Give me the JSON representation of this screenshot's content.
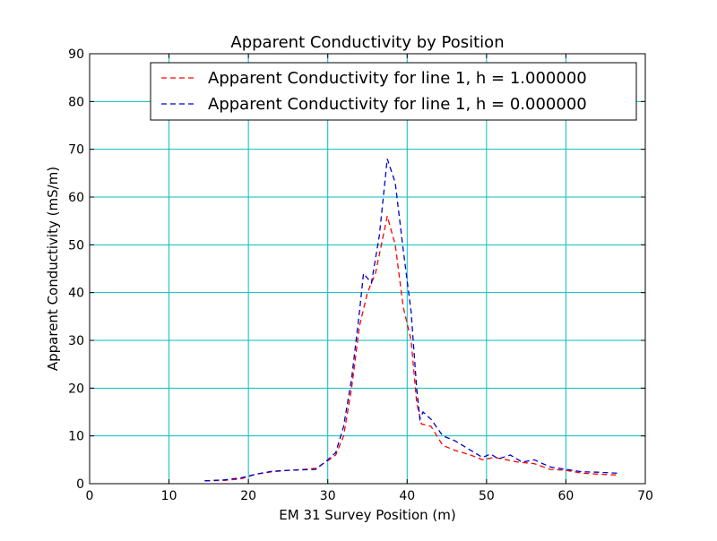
{
  "chart_data": {
    "type": "line",
    "title": "Apparent Conductivity by Position",
    "xlabel": "EM 31 Survey Position (m)",
    "ylabel": "Apparent Conductivity (mS/m)",
    "xlim": [
      0,
      70
    ],
    "ylim": [
      0,
      90
    ],
    "xticks": [
      0,
      10,
      20,
      30,
      40,
      50,
      60,
      70
    ],
    "yticks": [
      0,
      10,
      20,
      30,
      40,
      50,
      60,
      70,
      80,
      90
    ],
    "grid": true,
    "grid_color": "#00bfbf",
    "legend_position": "upper-right",
    "series": [
      {
        "name": "Apparent Conductivity for line 1, h = 1.000000",
        "color": "#ff0000",
        "style": "dashed",
        "points": [
          [
            14.5,
            0.6
          ],
          [
            17,
            0.7
          ],
          [
            19,
            1.0
          ],
          [
            21,
            2.0
          ],
          [
            23,
            2.5
          ],
          [
            25,
            2.8
          ],
          [
            27,
            3.0
          ],
          [
            28.5,
            3.2
          ],
          [
            30,
            4.8
          ],
          [
            31,
            6.0
          ],
          [
            32,
            10.0
          ],
          [
            33,
            20.0
          ],
          [
            34,
            33.0
          ],
          [
            35,
            40.0
          ],
          [
            36,
            44.0
          ],
          [
            37.5,
            56.0
          ],
          [
            38.5,
            50.0
          ],
          [
            39.5,
            37.0
          ],
          [
            40.5,
            30.0
          ],
          [
            41.2,
            17.0
          ],
          [
            41.8,
            12.5
          ],
          [
            43,
            12.0
          ],
          [
            44.5,
            8.0
          ],
          [
            46,
            7.0
          ],
          [
            48,
            6.0
          ],
          [
            49.5,
            5.0
          ],
          [
            51,
            5.5
          ],
          [
            52.5,
            5.0
          ],
          [
            54,
            4.5
          ],
          [
            56,
            4.2
          ],
          [
            58,
            3.0
          ],
          [
            60,
            2.8
          ],
          [
            62,
            2.2
          ],
          [
            64,
            2.0
          ],
          [
            66.5,
            1.8
          ]
        ]
      },
      {
        "name": "Apparent Conductivity for line 1, h = 0.000000",
        "color": "#0000cc",
        "style": "dashed",
        "points": [
          [
            14.5,
            0.6
          ],
          [
            17,
            0.8
          ],
          [
            19,
            1.2
          ],
          [
            21,
            2.0
          ],
          [
            23,
            2.6
          ],
          [
            25,
            2.8
          ],
          [
            27,
            2.9
          ],
          [
            28.5,
            3.0
          ],
          [
            30,
            5.0
          ],
          [
            31,
            6.5
          ],
          [
            32,
            12.0
          ],
          [
            33,
            22.0
          ],
          [
            34,
            36.0
          ],
          [
            34.5,
            44.0
          ],
          [
            35.5,
            42.0
          ],
          [
            36.5,
            52.0
          ],
          [
            37.5,
            68.0
          ],
          [
            38.5,
            63.0
          ],
          [
            39.5,
            49.0
          ],
          [
            40.5,
            36.0
          ],
          [
            41.2,
            20.0
          ],
          [
            41.6,
            13.5
          ],
          [
            42,
            15.0
          ],
          [
            43,
            13.5
          ],
          [
            44.5,
            10.0
          ],
          [
            46,
            9.0
          ],
          [
            48,
            7.0
          ],
          [
            49.5,
            5.5
          ],
          [
            50.5,
            6.2
          ],
          [
            51.5,
            5.2
          ],
          [
            53,
            6.0
          ],
          [
            54.5,
            4.5
          ],
          [
            56,
            5.0
          ],
          [
            58,
            3.5
          ],
          [
            60,
            3.0
          ],
          [
            62,
            2.5
          ],
          [
            64,
            2.4
          ],
          [
            66.5,
            2.2
          ]
        ]
      }
    ]
  }
}
